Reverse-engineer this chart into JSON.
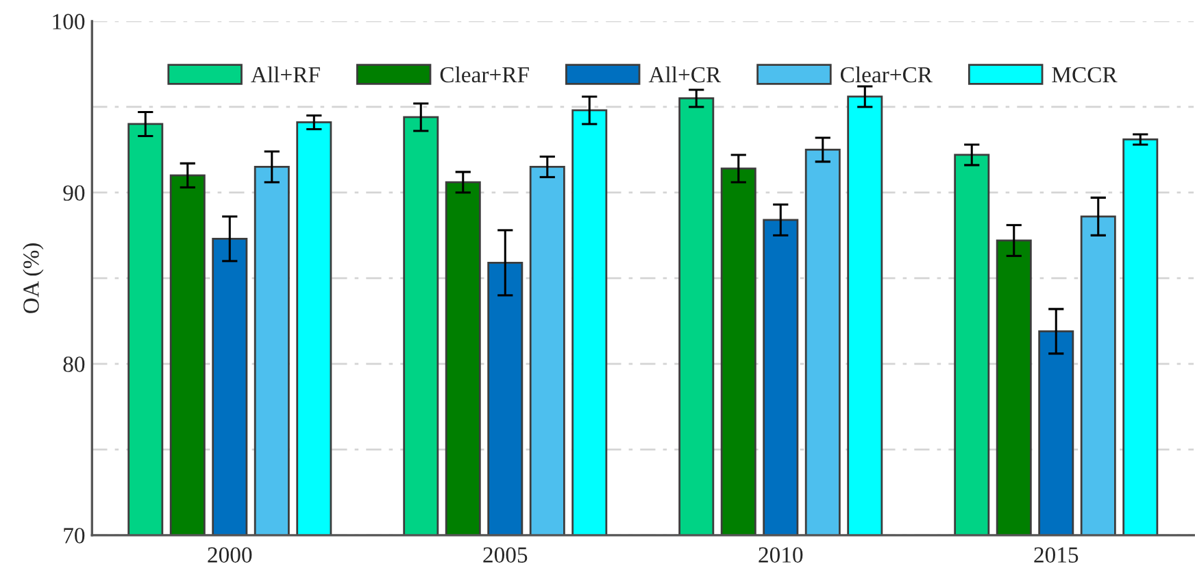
{
  "chart_data": {
    "type": "bar",
    "ylabel": "OA (%)",
    "categories": [
      "2000",
      "2005",
      "2010",
      "2015"
    ],
    "series": [
      {
        "name": "All+RF",
        "color": "#00d385",
        "values": [
          94.0,
          94.4,
          95.5,
          92.2
        ],
        "errors": [
          0.7,
          0.8,
          0.5,
          0.6
        ]
      },
      {
        "name": "Clear+RF",
        "color": "#007f00",
        "values": [
          91.0,
          90.6,
          91.4,
          87.2
        ],
        "errors": [
          0.7,
          0.6,
          0.8,
          0.9
        ]
      },
      {
        "name": "All+CR",
        "color": "#0070c0",
        "values": [
          87.3,
          85.9,
          88.4,
          81.9
        ],
        "errors": [
          1.3,
          1.9,
          0.9,
          1.3
        ]
      },
      {
        "name": "Clear+CR",
        "color": "#4dbfee",
        "values": [
          91.5,
          91.5,
          92.5,
          88.6
        ],
        "errors": [
          0.9,
          0.6,
          0.7,
          1.1
        ]
      },
      {
        "name": "MCCR",
        "color": "#00ffff",
        "values": [
          94.1,
          94.8,
          95.6,
          93.1
        ],
        "errors": [
          0.4,
          0.8,
          0.6,
          0.3
        ]
      }
    ],
    "ylim": [
      70,
      100
    ],
    "yticks": [
      70,
      {
        "value": 75,
        "label": null
      },
      80,
      {
        "value": 85,
        "label": null
      },
      90,
      {
        "value": 95,
        "label": null
      },
      100
    ],
    "grid": "y",
    "legend": "top"
  }
}
